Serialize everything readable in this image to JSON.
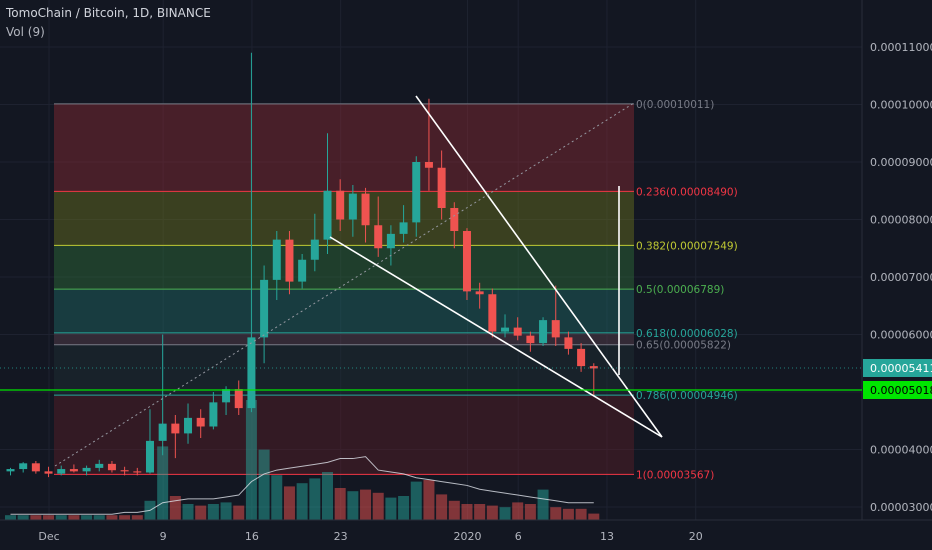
{
  "header": {
    "symbol_title": "TomoChain / Bitcoin, 1D, BINANCE",
    "volume_label": "Vol (9)"
  },
  "colors": {
    "background": "#131722",
    "up": "#26a69a",
    "down": "#ef5350",
    "grid": "#1e2230",
    "axis_text": "#b2b5be",
    "current_price_line": "#00e600",
    "trend_lines": "#ffffff"
  },
  "chart_data": {
    "type": "candlestick",
    "title": "TomoChain / Bitcoin, 1D, BINANCE",
    "x_tick_labels": [
      "Dec",
      "9",
      "16",
      "23",
      "2020",
      "6",
      "13",
      "20"
    ],
    "y_tick_labels": [
      "0.00003000",
      "0.00004000",
      "0.00005000",
      "0.00006000",
      "0.00007000",
      "0.00008000",
      "0.00009000",
      "0.00010000",
      "0.00011000"
    ],
    "ylim": [
      2.83e-05,
      0.0001175
    ],
    "price_labels": {
      "last_price": "0.00005411",
      "current_price": "0.00005018"
    },
    "fib_levels": [
      {
        "ratio": "0",
        "price": 0.00010011,
        "label": "0(0.00010011)",
        "color": "#787b86"
      },
      {
        "ratio": "0.236",
        "price": 8.49e-05,
        "label": "0.236(0.00008490)",
        "color": "#f23645"
      },
      {
        "ratio": "0.382",
        "price": 7.549e-05,
        "label": "0.382(0.00007549)",
        "color": "#c0ca33"
      },
      {
        "ratio": "0.5",
        "price": 6.789e-05,
        "label": "0.5(0.00006789)",
        "color": "#4caf50"
      },
      {
        "ratio": "0.618",
        "price": 6.028e-05,
        "label": "0.618(0.00006028)",
        "color": "#26a69a"
      },
      {
        "ratio": "0.65",
        "price": 5.822e-05,
        "label": "0.65(0.00005822)",
        "color": "#787b86"
      },
      {
        "ratio": "0.786",
        "price": 4.946e-05,
        "label": "0.786(0.00004946)",
        "color": "#26a69a"
      },
      {
        "ratio": "1",
        "price": 3.567e-05,
        "label": "1(0.00003567)",
        "color": "#f23645"
      }
    ],
    "candles": [
      {
        "d": 0,
        "o": 3.62e-05,
        "h": 3.68e-05,
        "l": 3.55e-05,
        "c": 3.66e-05
      },
      {
        "d": 1,
        "o": 3.66e-05,
        "h": 3.78e-05,
        "l": 3.6e-05,
        "c": 3.76e-05
      },
      {
        "d": 2,
        "o": 3.76e-05,
        "h": 3.8e-05,
        "l": 3.58e-05,
        "c": 3.62e-05
      },
      {
        "d": 3,
        "o": 3.62e-05,
        "h": 3.7e-05,
        "l": 3.52e-05,
        "c": 3.58e-05
      },
      {
        "d": 4,
        "o": 3.58e-05,
        "h": 3.72e-05,
        "l": 3.55e-05,
        "c": 3.66e-05
      },
      {
        "d": 5,
        "o": 3.66e-05,
        "h": 3.74e-05,
        "l": 3.6e-05,
        "c": 3.62e-05
      },
      {
        "d": 6,
        "o": 3.62e-05,
        "h": 3.72e-05,
        "l": 3.55e-05,
        "c": 3.68e-05
      },
      {
        "d": 7,
        "o": 3.68e-05,
        "h": 3.82e-05,
        "l": 3.62e-05,
        "c": 3.75e-05
      },
      {
        "d": 8,
        "o": 3.75e-05,
        "h": 3.8e-05,
        "l": 3.6e-05,
        "c": 3.64e-05
      },
      {
        "d": 9,
        "o": 3.64e-05,
        "h": 3.7e-05,
        "l": 3.55e-05,
        "c": 3.62e-05
      },
      {
        "d": 10,
        "o": 3.62e-05,
        "h": 3.68e-05,
        "l": 3.55e-05,
        "c": 3.6e-05
      },
      {
        "d": 11,
        "o": 3.6e-05,
        "h": 4.7e-05,
        "l": 3.58e-05,
        "c": 4.15e-05
      },
      {
        "d": 12,
        "o": 4.15e-05,
        "h": 6e-05,
        "l": 3.9e-05,
        "c": 4.45e-05
      },
      {
        "d": 13,
        "o": 4.45e-05,
        "h": 4.6e-05,
        "l": 3.85e-05,
        "c": 4.28e-05
      },
      {
        "d": 14,
        "o": 4.28e-05,
        "h": 4.8e-05,
        "l": 4.1e-05,
        "c": 4.55e-05
      },
      {
        "d": 15,
        "o": 4.55e-05,
        "h": 4.7e-05,
        "l": 4.2e-05,
        "c": 4.4e-05
      },
      {
        "d": 16,
        "o": 4.4e-05,
        "h": 5e-05,
        "l": 4.35e-05,
        "c": 4.82e-05
      },
      {
        "d": 17,
        "o": 4.82e-05,
        "h": 5.1e-05,
        "l": 4.6e-05,
        "c": 5.05e-05
      },
      {
        "d": 18,
        "o": 5.05e-05,
        "h": 5.2e-05,
        "l": 4.6e-05,
        "c": 4.72e-05
      },
      {
        "d": 19,
        "o": 4.72e-05,
        "h": 0.000109,
        "l": 4.65e-05,
        "c": 5.95e-05
      },
      {
        "d": 20,
        "o": 5.95e-05,
        "h": 7.2e-05,
        "l": 5.5e-05,
        "c": 6.95e-05
      },
      {
        "d": 21,
        "o": 6.95e-05,
        "h": 7.8e-05,
        "l": 6.6e-05,
        "c": 7.65e-05
      },
      {
        "d": 22,
        "o": 7.65e-05,
        "h": 7.8e-05,
        "l": 6.7e-05,
        "c": 6.92e-05
      },
      {
        "d": 23,
        "o": 6.92e-05,
        "h": 7.4e-05,
        "l": 6.8e-05,
        "c": 7.3e-05
      },
      {
        "d": 24,
        "o": 7.3e-05,
        "h": 8.1e-05,
        "l": 7.1e-05,
        "c": 7.65e-05
      },
      {
        "d": 25,
        "o": 7.65e-05,
        "h": 9.5e-05,
        "l": 7.4e-05,
        "c": 8.5e-05
      },
      {
        "d": 26,
        "o": 8.5e-05,
        "h": 8.7e-05,
        "l": 7.8e-05,
        "c": 8e-05
      },
      {
        "d": 27,
        "o": 8e-05,
        "h": 8.6e-05,
        "l": 7.7e-05,
        "c": 8.45e-05
      },
      {
        "d": 28,
        "o": 8.45e-05,
        "h": 8.55e-05,
        "l": 7.6e-05,
        "c": 7.9e-05
      },
      {
        "d": 29,
        "o": 7.9e-05,
        "h": 8.4e-05,
        "l": 7.35e-05,
        "c": 7.5e-05
      },
      {
        "d": 30,
        "o": 7.5e-05,
        "h": 7.9e-05,
        "l": 7.2e-05,
        "c": 7.75e-05
      },
      {
        "d": 31,
        "o": 7.75e-05,
        "h": 8.25e-05,
        "l": 7.6e-05,
        "c": 7.95e-05
      },
      {
        "d": 32,
        "o": 7.95e-05,
        "h": 9.1e-05,
        "l": 7.7e-05,
        "c": 9e-05
      },
      {
        "d": 33,
        "o": 9e-05,
        "h": 0.000101,
        "l": 8.5e-05,
        "c": 8.9e-05
      },
      {
        "d": 34,
        "o": 8.9e-05,
        "h": 9.2e-05,
        "l": 8e-05,
        "c": 8.2e-05
      },
      {
        "d": 35,
        "o": 8.2e-05,
        "h": 8.3e-05,
        "l": 7.5e-05,
        "c": 7.8e-05
      },
      {
        "d": 36,
        "o": 7.8e-05,
        "h": 7.85e-05,
        "l": 6.6e-05,
        "c": 6.75e-05
      },
      {
        "d": 37,
        "o": 6.75e-05,
        "h": 6.9e-05,
        "l": 6.45e-05,
        "c": 6.7e-05
      },
      {
        "d": 38,
        "o": 6.7e-05,
        "h": 6.8e-05,
        "l": 5.95e-05,
        "c": 6.05e-05
      },
      {
        "d": 39,
        "o": 6.05e-05,
        "h": 6.35e-05,
        "l": 5.95e-05,
        "c": 6.12e-05
      },
      {
        "d": 40,
        "o": 6.12e-05,
        "h": 6.3e-05,
        "l": 5.9e-05,
        "c": 5.98e-05
      },
      {
        "d": 41,
        "o": 5.98e-05,
        "h": 6.05e-05,
        "l": 5.7e-05,
        "c": 5.85e-05
      },
      {
        "d": 42,
        "o": 5.85e-05,
        "h": 6.3e-05,
        "l": 5.8e-05,
        "c": 6.25e-05
      },
      {
        "d": 43,
        "o": 6.25e-05,
        "h": 6.85e-05,
        "l": 5.8e-05,
        "c": 5.95e-05
      },
      {
        "d": 44,
        "o": 5.95e-05,
        "h": 6.05e-05,
        "l": 5.65e-05,
        "c": 5.75e-05
      },
      {
        "d": 45,
        "o": 5.75e-05,
        "h": 5.85e-05,
        "l": 5.35e-05,
        "c": 5.45e-05
      },
      {
        "d": 46,
        "o": 5.45e-05,
        "h": 5.5e-05,
        "l": 4.95e-05,
        "c": 5.41e-05
      }
    ],
    "volumes": [
      0.3,
      0.3,
      0.3,
      0.3,
      0.3,
      0.3,
      0.3,
      0.3,
      0.3,
      0.3,
      0.3,
      1.2,
      4.6,
      1.5,
      1.0,
      0.9,
      1.0,
      1.1,
      0.9,
      7.5,
      4.4,
      2.8,
      2.1,
      2.3,
      2.6,
      3.0,
      2.0,
      1.8,
      1.9,
      1.7,
      1.4,
      1.5,
      2.4,
      2.5,
      1.6,
      1.2,
      1.0,
      1.0,
      0.9,
      0.8,
      1.1,
      1.0,
      1.9,
      0.8,
      0.7,
      0.7,
      0.4
    ],
    "volume_ma": [
      0.3,
      0.3,
      0.3,
      0.3,
      0.3,
      0.3,
      0.3,
      0.3,
      0.3,
      0.4,
      0.4,
      0.5,
      0.9,
      1.0,
      1.1,
      1.1,
      1.1,
      1.2,
      1.3,
      2.0,
      2.4,
      2.6,
      2.7,
      2.8,
      2.9,
      3.0,
      3.2,
      3.2,
      3.3,
      2.6,
      2.5,
      2.4,
      2.2,
      2.1,
      2.0,
      1.9,
      1.8,
      1.6,
      1.5,
      1.4,
      1.3,
      1.2,
      1.1,
      1.0,
      0.9,
      0.9,
      0.9
    ]
  }
}
